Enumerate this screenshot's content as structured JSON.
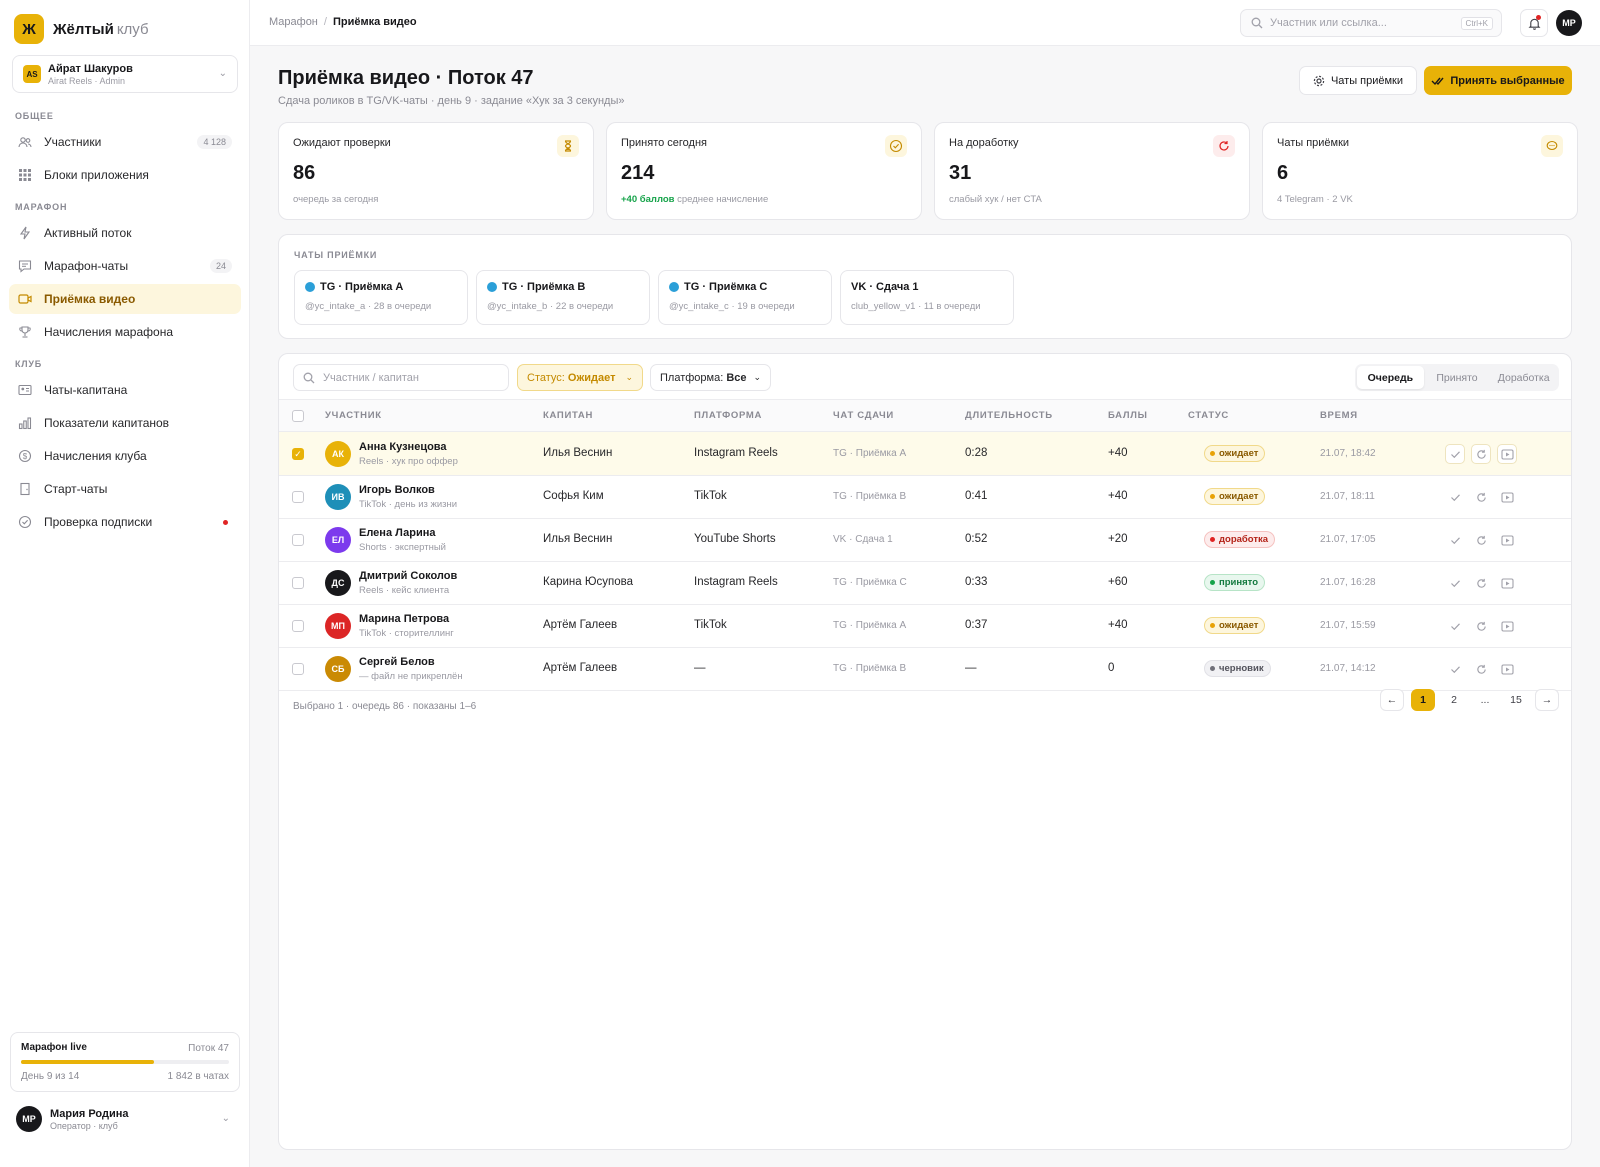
{
  "brand": {
    "logo_letter": "Ж",
    "name": "Жёлтый",
    "suffix": "клуб"
  },
  "account": {
    "badge": "AS",
    "name": "Айрат Шакуров",
    "role": "Airat Reels · Admin"
  },
  "nav": {
    "sections": {
      "general": "ОБЩЕЕ",
      "marathon": "МАРАФОН",
      "club": "КЛУБ"
    },
    "items": [
      {
        "label": "Участники",
        "icon": "users-icon",
        "count": "4 128"
      },
      {
        "label": "Блоки приложения",
        "icon": "grid-icon"
      },
      {
        "label": "Активный поток",
        "icon": "bolt-icon"
      },
      {
        "label": "Марафон-чаты",
        "icon": "chat-icon",
        "count": "24"
      },
      {
        "label": "Приёмка видео",
        "icon": "video-icon",
        "active": true
      },
      {
        "label": "Начисления марафона",
        "icon": "trophy-icon"
      },
      {
        "label": "Чаты-капитана",
        "icon": "id-card-icon"
      },
      {
        "label": "Показатели капитанов",
        "icon": "bar-chart-icon"
      },
      {
        "label": "Начисления клуба",
        "icon": "coin-icon"
      },
      {
        "label": "Старт-чаты",
        "icon": "door-icon"
      },
      {
        "label": "Проверка подписки",
        "icon": "check-circle-icon",
        "alert": true
      }
    ]
  },
  "marathon_card": {
    "title": "Марафон live",
    "stream": "Поток 47",
    "day": "День 9 из 14",
    "chats": "1 842 в чатах",
    "progress": 0.64
  },
  "user": {
    "initials": "МР",
    "name": "Мария Родина",
    "role": "Оператор · клуб"
  },
  "topbar": {
    "crumb_parent": "Марафон",
    "crumb_sep": "/",
    "crumb_current": "Приёмка видео",
    "search_placeholder": "Участник или ссылка...",
    "search_kbd": "Ctrl+K",
    "avatar": "МР"
  },
  "page": {
    "title": "Приёмка видео · Поток 47",
    "subtitle": "Сдача роликов в TG/VK-чаты · день 9 · задание «Хук за 3 секунды»",
    "btn_chats": "Чаты приёмки",
    "btn_accept": "Принять выбранные"
  },
  "kpis": [
    {
      "label": "Ожидают проверки",
      "value": "86",
      "note": "очередь за сегодня",
      "icon": "hourglass-icon",
      "color": "#c48a00",
      "bg": "#fdf6dd"
    },
    {
      "label": "Принято сегодня",
      "value": "214",
      "note_pos": "+40 баллов",
      "note": "среднее начисление",
      "icon": "check-circle-icon",
      "color": "#c48a00",
      "bg": "#fdf6dd"
    },
    {
      "label": "На доработку",
      "value": "31",
      "note": "слабый хук / нет CTA",
      "icon": "refresh-icon",
      "color": "#e02424",
      "bg": "#fdecec"
    },
    {
      "label": "Чаты приёмки",
      "value": "6",
      "note": "4 Telegram · 2 VK",
      "icon": "chat-bubble-icon",
      "color": "#c48a00",
      "bg": "#fdf6dd"
    }
  ],
  "chats": {
    "heading": "ЧАТЫ ПРИЁМКИ",
    "items": [
      {
        "name": "TG · Приёмка A",
        "sub": "@yc_intake_a · 28 в очереди",
        "tg": true
      },
      {
        "name": "TG · Приёмка B",
        "sub": "@yc_intake_b · 22 в очереди",
        "tg": true
      },
      {
        "name": "TG · Приёмка C",
        "sub": "@yc_intake_c · 19 в очереди",
        "tg": true
      },
      {
        "name": "VK · Сдача 1",
        "sub": "club_yellow_v1 · 11 в очереди",
        "tg": false
      }
    ]
  },
  "filters": {
    "search_placeholder": "Участник / капитан",
    "status_label": "Статус:",
    "status_value": "Ожидает",
    "platform_label": "Платформа:",
    "platform_value": "Все",
    "tabs": [
      "Очередь",
      "Принято",
      "Доработка"
    ],
    "active_tab": 0
  },
  "table": {
    "columns": [
      "УЧАСТНИК",
      "КАПИТАН",
      "ПЛАТФОРМА",
      "ЧАТ СДАЧИ",
      "ДЛИТЕЛЬНОСТЬ",
      "БАЛЛЫ",
      "СТАТУС",
      "ВРЕМЯ"
    ],
    "rows": [
      {
        "initials": "АК",
        "color": "#e8b208",
        "name": "Анна Кузнецова",
        "sub": "Reels · хук про оффер",
        "captain": "Илья Веснин",
        "platform": "Instagram Reels",
        "chat": "TG · Приёмка A",
        "duration": "0:28",
        "points": "+40",
        "status": "ожидает",
        "status_kind": "wait",
        "time": "21.07, 18:42",
        "selected": true
      },
      {
        "initials": "ИВ",
        "color": "#1e8fb8",
        "name": "Игорь Волков",
        "sub": "TikTok · день из жизни",
        "captain": "Софья Ким",
        "platform": "TikTok",
        "chat": "TG · Приёмка B",
        "duration": "0:41",
        "points": "+40",
        "status": "ожидает",
        "status_kind": "wait",
        "time": "21.07, 18:11",
        "selected": false
      },
      {
        "initials": "ЕЛ",
        "color": "#7c3aed",
        "name": "Елена Ларина",
        "sub": "Shorts · экспертный",
        "captain": "Илья Веснин",
        "platform": "YouTube Shorts",
        "chat": "VK · Сдача 1",
        "duration": "0:52",
        "points": "+20",
        "status": "доработка",
        "status_kind": "rework",
        "time": "21.07, 17:05",
        "selected": false
      },
      {
        "initials": "ДС",
        "color": "#18181b",
        "name": "Дмитрий Соколов",
        "sub": "Reels · кейс клиента",
        "captain": "Карина Юсупова",
        "platform": "Instagram Reels",
        "chat": "TG · Приёмка C",
        "duration": "0:33",
        "points": "+60",
        "status": "принято",
        "status_kind": "ok",
        "time": "21.07, 16:28",
        "selected": false
      },
      {
        "initials": "МП",
        "color": "#dc2626",
        "name": "Марина Петрова",
        "sub": "TikTok · сторителлинг",
        "captain": "Артём Галеев",
        "platform": "TikTok",
        "chat": "TG · Приёмка A",
        "duration": "0:37",
        "points": "+40",
        "status": "ожидает",
        "status_kind": "wait",
        "time": "21.07, 15:59",
        "selected": false
      },
      {
        "initials": "СБ",
        "color": "#ca8a04",
        "name": "Сергей Белов",
        "sub": "— файл не прикреплён",
        "captain": "Артём Галеев",
        "platform": "—",
        "chat": "TG · Приёмка B",
        "duration": "—",
        "points": "0",
        "status": "черновик",
        "status_kind": "draft",
        "time": "21.07, 14:12",
        "selected": false
      }
    ],
    "footer": "Выбрано 1 · очередь 86 · показаны 1–6",
    "pages": [
      "←",
      "1",
      "2",
      "...",
      "15",
      "→"
    ],
    "current_page": "1"
  }
}
